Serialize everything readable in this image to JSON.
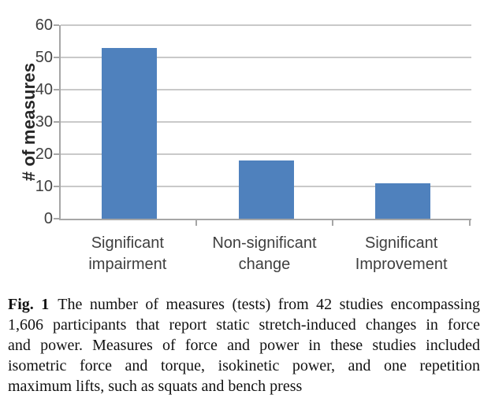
{
  "chart_data": {
    "type": "bar",
    "categories": [
      "Significant\nimpairment",
      "Non-significant\nchange",
      "Significant\nImprovement"
    ],
    "values": [
      53,
      18,
      11
    ],
    "title": "",
    "xlabel": "",
    "ylabel": "# of measures",
    "ylim": [
      0,
      60
    ],
    "ytick_step": 10,
    "yticks": [
      0,
      10,
      20,
      30,
      40,
      50,
      60
    ],
    "grid": true,
    "legend": "none",
    "bar_color": "#4f81bd",
    "gridline_color": "#c9c9c9",
    "axis_color": "#a6a6a6",
    "tick_label_color": "#3f3f3f"
  },
  "caption": {
    "label": "Fig. 1",
    "lines": [
      "The number of measures (tests) from 42 studies encompassing",
      "1,606 participants that report static stretch-induced changes in force",
      "and power. Measures of force and power in these studies included",
      "isometric force and torque, isokinetic power, and one repetition",
      "maximum lifts, such as squats and bench press"
    ]
  }
}
